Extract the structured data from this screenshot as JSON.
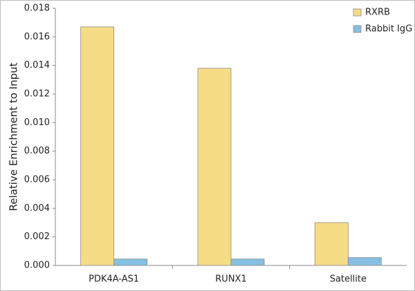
{
  "chart_data": {
    "type": "bar",
    "y_label": "Relative Enrichment to Input",
    "categories": [
      "PDK4A-AS1",
      "RUNX1",
      "Satellite"
    ],
    "series": [
      {
        "name": "RXRB",
        "color": "#f7dc86",
        "values": [
          0.0167,
          0.0138,
          0.003
        ]
      },
      {
        "name": "Rabbit IgG",
        "color": "#86bfe2",
        "values": [
          0.00045,
          0.00045,
          0.00055
        ]
      }
    ],
    "ylim": [
      0,
      0.018
    ],
    "yticks": [
      {
        "value": 0,
        "label": "0.000"
      },
      0.002,
      0.004,
      0.006,
      0.008,
      {
        "value": 0.01,
        "label": "0.010"
      },
      0.012,
      0.014,
      0.016,
      0.018
    ],
    "legend": "top-right"
  }
}
